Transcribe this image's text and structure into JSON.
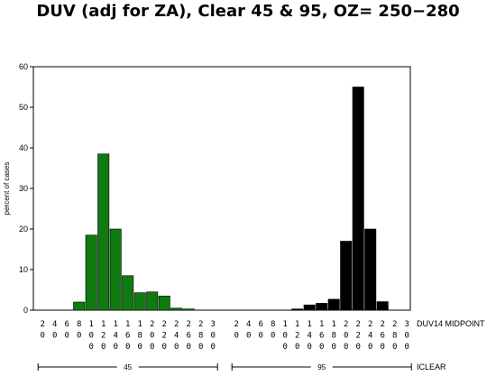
{
  "chart_data": {
    "type": "bar",
    "title": "DUV (adj for ZA), Clear 45 & 95, OZ= 250−280",
    "ylabel": "percent of cases",
    "ylim": [
      0,
      60
    ],
    "yticks": [
      0,
      10,
      20,
      30,
      40,
      50,
      60
    ],
    "x_axis_label": "DUV14 MIDPOINT",
    "group_axis_label": "ICLEAR",
    "categories": [
      "20",
      "40",
      "60",
      "80",
      "100",
      "120",
      "140",
      "160",
      "180",
      "200",
      "220",
      "240",
      "260",
      "280",
      "300"
    ],
    "groups": [
      {
        "name": "45",
        "color": "#0f7a0f",
        "values": [
          0,
          0,
          0,
          2,
          18.5,
          38.5,
          20,
          8.5,
          4.3,
          4.5,
          3.5,
          0.5,
          0.3,
          0,
          0
        ]
      },
      {
        "name": "95",
        "color": "#000000",
        "values": [
          0,
          0,
          0,
          0,
          0,
          0.3,
          1.3,
          1.7,
          2.7,
          17,
          55,
          20,
          2.1,
          0,
          0
        ]
      }
    ]
  }
}
